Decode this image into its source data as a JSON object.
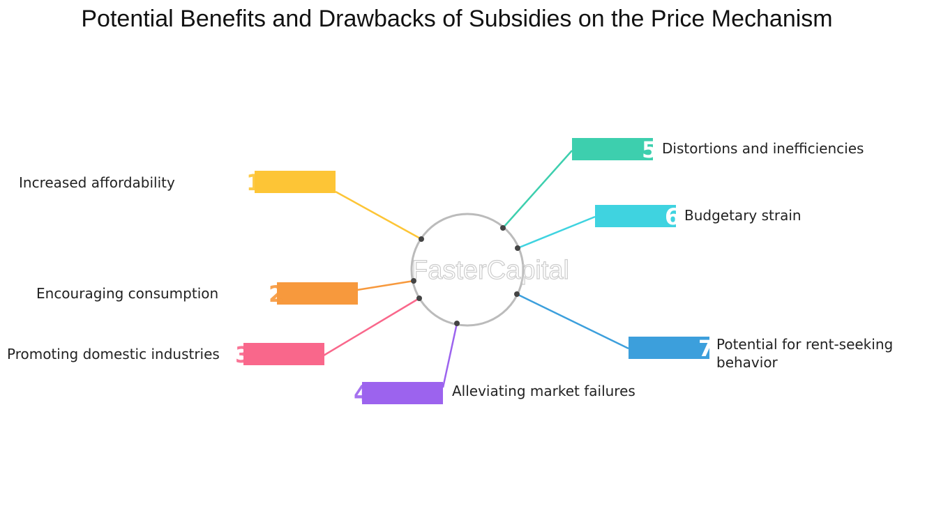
{
  "title": "Potential Benefits and Drawbacks of Subsidies on the Price Mechanism",
  "watermark": "FasterCapital",
  "items": [
    {
      "number": "1",
      "label": "Increased affordability"
    },
    {
      "number": "2",
      "label": "Encouraging consumption"
    },
    {
      "number": "3",
      "label": "Promoting domestic industries"
    },
    {
      "number": "4",
      "label": "Alleviating market failures"
    },
    {
      "number": "5",
      "label": "Distortions and inefficiencies"
    },
    {
      "number": "6",
      "label": "Budgetary strain"
    },
    {
      "number": "7",
      "label": "Potential for rent-seeking behavior"
    }
  ]
}
